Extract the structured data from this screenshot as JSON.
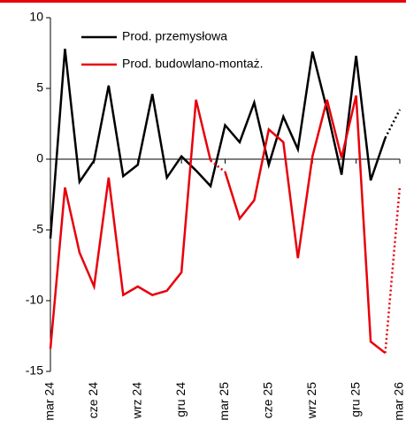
{
  "chart_data": {
    "type": "line",
    "categories": [
      "mar 24",
      null,
      null,
      "cze 24",
      null,
      null,
      "wrz 24",
      null,
      null,
      "gru 24",
      null,
      null,
      "mar 25",
      null,
      null,
      "cze 25",
      null,
      null,
      "wrz 25",
      null,
      null,
      "gru 25",
      null,
      null,
      "mar 26"
    ],
    "series": [
      {
        "name": "Prod. przemysłowa",
        "color": "#000000",
        "dotted_segments": [
          23
        ],
        "values": [
          -5.6,
          7.8,
          -1.6,
          -0.1,
          5.2,
          -1.2,
          -0.4,
          4.6,
          -1.3,
          0.2,
          -0.8,
          -1.9,
          2.4,
          1.2,
          4.0,
          -0.4,
          3.0,
          0.7,
          7.6,
          3.5,
          -1.1,
          7.3,
          -1.5,
          1.5,
          3.5
        ]
      },
      {
        "name": "Prod. budowlano-montaż.",
        "color": "#e8000b",
        "dotted_segments": [
          11,
          23
        ],
        "values": [
          -13.4,
          -2.0,
          -6.6,
          -9.0,
          -1.3,
          -9.6,
          -9.0,
          -9.6,
          -9.3,
          -8.0,
          4.2,
          -0.1,
          -0.9,
          -4.2,
          -2.9,
          2.1,
          1.2,
          -7.0,
          0.2,
          4.2,
          0.1,
          4.5,
          -12.9,
          -13.7,
          -1.9
        ]
      }
    ],
    "ylim": [
      -15,
      10
    ],
    "yticks": [
      -15,
      -10,
      -5,
      0,
      5,
      10
    ],
    "legend": "upper left"
  }
}
